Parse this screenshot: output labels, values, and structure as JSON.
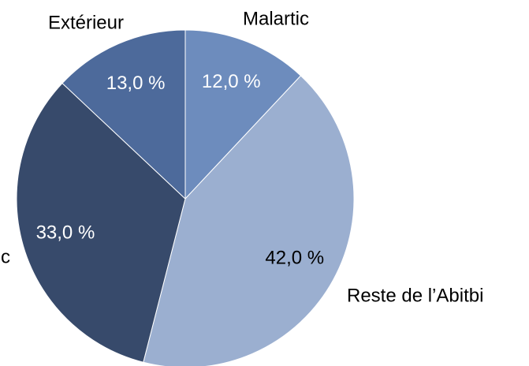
{
  "chart_data": {
    "type": "pie",
    "categories": [
      "Malartic",
      "Reste de l’Abitbi",
      "c",
      "Extérieur"
    ],
    "values": [
      12,
      42,
      33,
      13
    ],
    "value_labels": [
      "12,0 %",
      "42,0 %",
      "33,0 %",
      "13,0 %"
    ],
    "colors": [
      "#6d8cbd",
      "#9bafd0",
      "#374a6b",
      "#4d6a9b"
    ],
    "value_label_colors": [
      "#ffffff",
      "#000000",
      "#ffffff",
      "#ffffff"
    ]
  }
}
